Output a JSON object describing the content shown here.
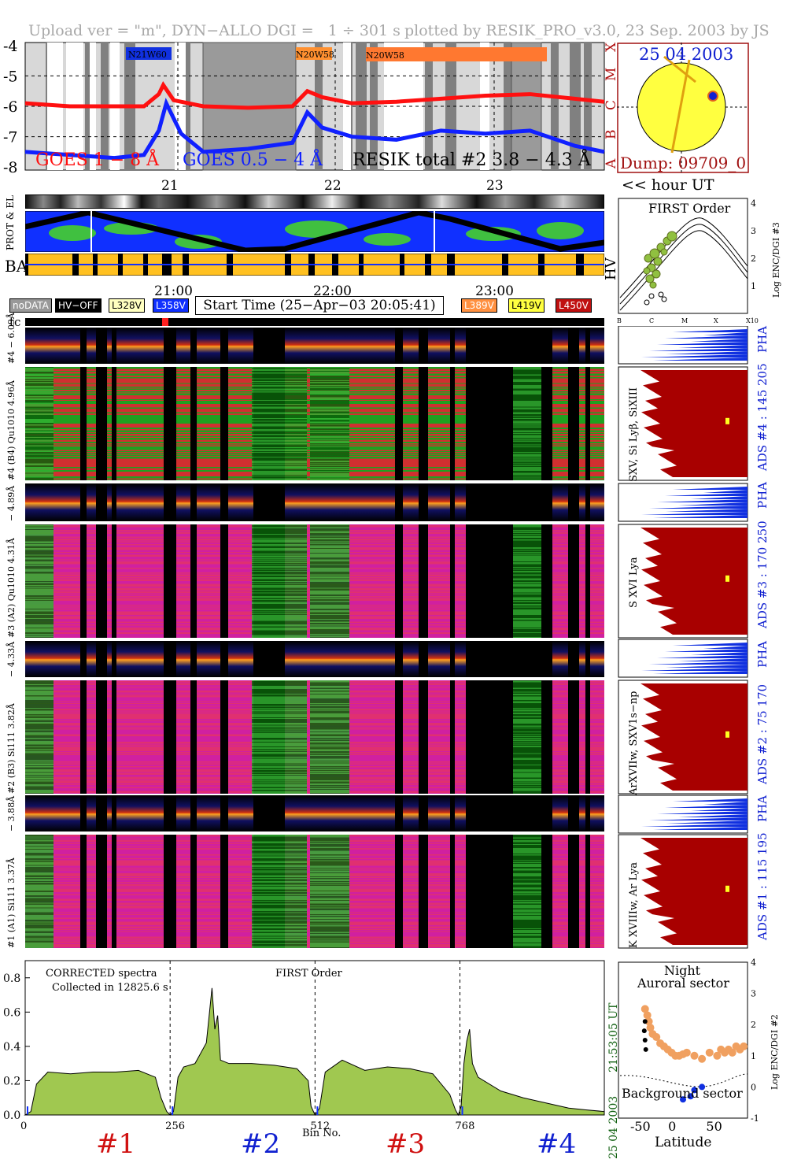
{
  "header": {
    "left": "Upload ver = \"m\", DYN−ALLO DGI =   1 ÷ 301 s",
    "right": "plotted by RESIK_PRO_v3.0, 23 Sep. 2003 by JS"
  },
  "goes_panel": {
    "chart_data": {
      "type": "line",
      "series": [
        {
          "name": "GOES 1 − 8 Å",
          "color": "#ff1010",
          "x": [
            20.1,
            20.4,
            20.7,
            20.9,
            21.0,
            21.03,
            21.1,
            21.3,
            21.6,
            21.9,
            22.0,
            22.1,
            22.3,
            22.6,
            22.9,
            23.2,
            23.5,
            23.8,
            24.0
          ],
          "y": [
            -5.9,
            -6.0,
            -6.0,
            -6.0,
            -5.6,
            -5.3,
            -5.8,
            -6.0,
            -6.05,
            -6.0,
            -5.5,
            -5.7,
            -5.9,
            -5.85,
            -5.75,
            -5.65,
            -5.6,
            -5.75,
            -5.85
          ]
        },
        {
          "name": "GOES 0.5 − 4 Å",
          "color": "#1020ff",
          "x": [
            20.1,
            20.4,
            20.7,
            20.9,
            21.0,
            21.05,
            21.15,
            21.3,
            21.6,
            21.9,
            22.0,
            22.1,
            22.3,
            22.6,
            22.9,
            23.2,
            23.5,
            23.8,
            24.0
          ],
          "y": [
            -7.5,
            -7.6,
            -7.7,
            -7.6,
            -6.8,
            -5.9,
            -6.9,
            -7.5,
            -7.4,
            -7.2,
            -6.2,
            -6.7,
            -7.0,
            -7.1,
            -6.8,
            -6.9,
            -6.8,
            -7.3,
            -7.5
          ]
        }
      ],
      "ylim": [
        -8.1,
        -3.9
      ],
      "yticks": [
        "-4",
        "-5",
        "-6",
        "-7",
        "-8"
      ],
      "class_labels": [
        "X",
        "M",
        "C",
        "B",
        "A"
      ],
      "resik_label": "RESIK total #2  3.8 − 4.3 Å",
      "region_labels": [
        "N21W60",
        "N20W58",
        "N20W58"
      ]
    }
  },
  "sun_panel": {
    "date": "25 04 2003",
    "dump": "Dump: 09709_0"
  },
  "hour_axis": {
    "ticks": [
      "21",
      "22",
      "23"
    ],
    "unit_label": "<< hour UT"
  },
  "orbit_labels": {
    "prot": "PROT & EL",
    "ba": "BA",
    "hv": "HV"
  },
  "time_axis": {
    "ticks": [
      "21:00",
      "22:00",
      "23:00"
    ]
  },
  "badges": {
    "nodata": "noDATA",
    "hvoff": "HV−OFF",
    "v1": "L328V",
    "v2": "L358V",
    "start": "Start Time (25−Apr−03 20:05:41)",
    "v3": "L389V",
    "v4": "L419V",
    "v5": "L450V"
  },
  "tc_label": "tc",
  "first_order_panel": {
    "title": "FIRST Order",
    "ylabel": "Log ENC/DGI #3",
    "yticks": [
      "1",
      "2",
      "3",
      "4"
    ],
    "xticks": [
      "B",
      "C",
      "M",
      "X",
      "X10"
    ]
  },
  "channels": [
    {
      "pha_label": "#4 − 6.09Å",
      "spec_label": "#4 (B4) Qu1010 4.96Å",
      "ads": "ADS #4 :   145 205",
      "lines": "SXV, Si Lyβ, SiXIII",
      "pha": "PHA"
    },
    {
      "pha_label": "− 4.89Å",
      "spec_label": "#3 (A2) Qu1010 4.31Å",
      "ads": "ADS #3 :   170 250",
      "lines": "S XVI Lya",
      "pha": "PHA"
    },
    {
      "pha_label": "− 4.33Å",
      "spec_label": "#2 (B3) Si111 3.82Å",
      "ads": "ADS #2 :   75 170",
      "lines": "ArXVIIw, SXV1s−np",
      "pha": "PHA"
    },
    {
      "pha_label": "− 3.88Å",
      "spec_label": "#1 (A1) Si111 3.37Å",
      "ads": "ADS #1 :   115 195",
      "lines": "K XVIIIw, Ar Lya",
      "pha": "PHA"
    }
  ],
  "spectrum_panel": {
    "note1": "CORRECTED spectra",
    "note2": "Collected in 12825.6 s",
    "mid_label": "FIRST Order",
    "side_time": "21:53:05 UT",
    "side_date": "25 04 2003",
    "xlabel": "Bin No.",
    "xticks": [
      "0",
      "256",
      "512",
      "768"
    ],
    "yticks": [
      "0.0",
      "0.2",
      "0.4",
      "0.6",
      "0.8"
    ],
    "channel_marks": [
      "#1",
      "#2",
      "#3",
      "#4"
    ],
    "chart_data": {
      "type": "area",
      "x": [
        0,
        10,
        20,
        40,
        80,
        120,
        160,
        200,
        230,
        240,
        250,
        256,
        262,
        270,
        280,
        300,
        320,
        330,
        335,
        340,
        345,
        360,
        400,
        440,
        480,
        500,
        505,
        512,
        520,
        530,
        560,
        600,
        640,
        680,
        720,
        750,
        760,
        765,
        770,
        775,
        780,
        785,
        790,
        800,
        840,
        880,
        920,
        960,
        990,
        1023
      ],
      "values": [
        0.0,
        0.02,
        0.18,
        0.25,
        0.24,
        0.25,
        0.25,
        0.26,
        0.22,
        0.1,
        0.02,
        0.0,
        0.02,
        0.22,
        0.28,
        0.3,
        0.42,
        0.74,
        0.5,
        0.58,
        0.32,
        0.3,
        0.3,
        0.29,
        0.27,
        0.2,
        0.05,
        0.0,
        0.04,
        0.25,
        0.32,
        0.26,
        0.28,
        0.27,
        0.24,
        0.12,
        0.03,
        0.0,
        0.05,
        0.3,
        0.43,
        0.5,
        0.3,
        0.22,
        0.14,
        0.1,
        0.07,
        0.04,
        0.03,
        0.02
      ],
      "ylim": [
        0,
        0.9
      ],
      "xlim": [
        0,
        1023
      ]
    }
  },
  "latitude_panel": {
    "title1": "Night",
    "title2": "Auroral sector",
    "title3": "Background sector",
    "xlabel": "Latitude",
    "ylabel": "Log ENC/DGI #2",
    "xticks": [
      "-50",
      "0",
      "50"
    ],
    "yticks": [
      "-1",
      "0",
      "1",
      "2",
      "3",
      "4"
    ],
    "chart_data": {
      "type": "scatter",
      "x": [
        -45,
        -42,
        -40,
        -38,
        -35,
        -30,
        -25,
        -20,
        -15,
        -10,
        -5,
        0,
        5,
        10,
        20,
        30,
        40,
        50,
        55,
        60,
        65,
        70,
        75,
        80,
        85
      ],
      "y": [
        2.5,
        2.3,
        2.1,
        1.9,
        1.7,
        1.6,
        1.4,
        1.3,
        1.2,
        1.1,
        1.0,
        1.0,
        1.05,
        1.1,
        1.0,
        0.9,
        1.1,
        1.0,
        1.2,
        1.1,
        1.2,
        1.1,
        1.3,
        1.2,
        1.3
      ],
      "xlim": [
        -80,
        90
      ],
      "ylim": [
        -1,
        4
      ]
    }
  }
}
